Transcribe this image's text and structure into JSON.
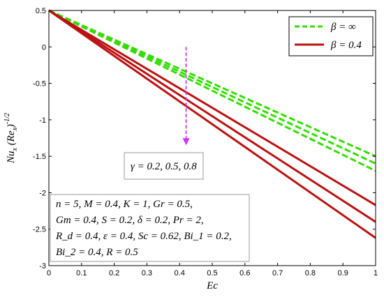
{
  "chart_data": {
    "type": "line",
    "xlabel": "Ec",
    "ylabel": "Nu_x (Re_x)^-1/2",
    "ylabel_parts": {
      "main": "Nu",
      "sub1": "x",
      "paren_open": " (",
      "re": "Re",
      "sub2": "x",
      "paren_close": ")",
      "sup": "-1/2"
    },
    "xlim": [
      0,
      1
    ],
    "ylim": [
      -3,
      0.5
    ],
    "x_ticks": [
      "0",
      "0.1",
      "0.2",
      "0.3",
      "0.4",
      "0.5",
      "0.6",
      "0.7",
      "0.8",
      "0.9",
      "1"
    ],
    "y_ticks": [
      "0.5",
      "0",
      "-0.5",
      "-1",
      "-1.5",
      "-2",
      "-2.5",
      "-3"
    ],
    "x_tick_values": [
      0,
      0.1,
      0.2,
      0.3,
      0.4,
      0.5,
      0.6,
      0.7,
      0.8,
      0.9,
      1
    ],
    "y_tick_values": [
      0.5,
      0,
      -0.5,
      -1,
      -1.5,
      -2,
      -2.5,
      -3
    ],
    "grid": false,
    "legend_position": "top-right",
    "legend": [
      {
        "label": "β = ∞",
        "color": "#33dd00",
        "style": "dashed"
      },
      {
        "label": "β = 0.4",
        "color": "#bb1111",
        "style": "solid"
      }
    ],
    "series": [
      {
        "group": "β = ∞",
        "gamma": 0.2,
        "color": "#33dd00",
        "style": "dashed",
        "x": [
          0,
          1
        ],
        "y": [
          0.5,
          -1.5
        ]
      },
      {
        "group": "β = ∞",
        "gamma": 0.5,
        "color": "#33dd00",
        "style": "dashed",
        "x": [
          0,
          1
        ],
        "y": [
          0.5,
          -1.6
        ]
      },
      {
        "group": "β = ∞",
        "gamma": 0.8,
        "color": "#33dd00",
        "style": "dashed",
        "x": [
          0,
          1
        ],
        "y": [
          0.5,
          -1.7
        ]
      },
      {
        "group": "β = 0.4",
        "gamma": 0.2,
        "color": "#bb1111",
        "style": "solid",
        "x": [
          0,
          1
        ],
        "y": [
          0.5,
          -2.17
        ]
      },
      {
        "group": "β = 0.4",
        "gamma": 0.5,
        "color": "#bb1111",
        "style": "solid",
        "x": [
          0,
          1
        ],
        "y": [
          0.5,
          -2.4
        ]
      },
      {
        "group": "β = 0.4",
        "gamma": 0.8,
        "color": "#bb1111",
        "style": "solid",
        "x": [
          0,
          1
        ],
        "y": [
          0.5,
          -2.62
        ]
      }
    ],
    "arrow": {
      "x": 0.42,
      "y_start": 0,
      "y_end": -1.3,
      "color": "#cc33ff"
    },
    "arrow_label": "γ = 0.2, 0.5, 0.8",
    "parameters_lines": [
      "n = 5, M = 0.4, K = 1, Gr = 0.5,",
      "Gm = 0.4, S = 0.2, δ = 0.2, Pr = 2,",
      "R_d = 0.4, ε = 0.4, Sc = 0.62, Bi_1 = 0.2,",
      "Bi_2 = 0.4, R = 0.5"
    ]
  }
}
